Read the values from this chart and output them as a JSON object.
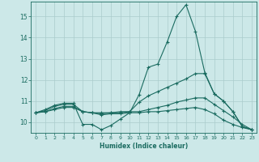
{
  "title": "",
  "xlabel": "Humidex (Indice chaleur)",
  "bg_color": "#cce8e8",
  "line_color": "#1a6b60",
  "grid_color": "#aacccc",
  "xlim": [
    -0.5,
    23.5
  ],
  "ylim": [
    9.5,
    15.7
  ],
  "yticks": [
    10,
    11,
    12,
    13,
    14,
    15
  ],
  "xticks": [
    0,
    1,
    2,
    3,
    4,
    5,
    6,
    7,
    8,
    9,
    10,
    11,
    12,
    13,
    14,
    15,
    16,
    17,
    18,
    19,
    20,
    21,
    22,
    23
  ],
  "line1_x": [
    0,
    1,
    2,
    3,
    4,
    5,
    6,
    7,
    8,
    9,
    10,
    11,
    12,
    13,
    14,
    15,
    16,
    17,
    18,
    19,
    20,
    21,
    22,
    23
  ],
  "line1_y": [
    10.45,
    10.6,
    10.8,
    10.9,
    10.9,
    9.9,
    9.9,
    9.65,
    9.85,
    10.15,
    10.45,
    11.3,
    12.6,
    12.75,
    13.8,
    15.0,
    15.55,
    14.3,
    12.35,
    11.35,
    11.0,
    10.5,
    9.8,
    9.65
  ],
  "line2_x": [
    0,
    1,
    2,
    3,
    4,
    5,
    6,
    7,
    8,
    9,
    10,
    11,
    12,
    13,
    14,
    15,
    16,
    17,
    18,
    19,
    20,
    21,
    22,
    23
  ],
  "line2_y": [
    10.45,
    10.55,
    10.75,
    10.85,
    10.85,
    10.5,
    10.45,
    10.45,
    10.45,
    10.5,
    10.5,
    10.95,
    11.25,
    11.45,
    11.65,
    11.85,
    12.05,
    12.3,
    12.3,
    11.35,
    11.0,
    10.5,
    9.8,
    9.65
  ],
  "line3_x": [
    0,
    1,
    2,
    3,
    4,
    5,
    6,
    7,
    8,
    9,
    10,
    11,
    12,
    13,
    14,
    15,
    16,
    17,
    18,
    19,
    20,
    21,
    22,
    23
  ],
  "line3_y": [
    10.45,
    10.5,
    10.65,
    10.75,
    10.75,
    10.5,
    10.45,
    10.4,
    10.45,
    10.45,
    10.5,
    10.5,
    10.6,
    10.7,
    10.8,
    10.95,
    11.05,
    11.15,
    11.15,
    10.85,
    10.55,
    10.25,
    9.9,
    9.65
  ],
  "line4_x": [
    0,
    1,
    2,
    3,
    4,
    5,
    6,
    7,
    8,
    9,
    10,
    11,
    12,
    13,
    14,
    15,
    16,
    17,
    18,
    19,
    20,
    21,
    22,
    23
  ],
  "line4_y": [
    10.45,
    10.5,
    10.6,
    10.7,
    10.7,
    10.5,
    10.45,
    10.35,
    10.4,
    10.4,
    10.45,
    10.45,
    10.5,
    10.5,
    10.55,
    10.6,
    10.65,
    10.7,
    10.6,
    10.4,
    10.1,
    9.9,
    9.75,
    9.65
  ]
}
